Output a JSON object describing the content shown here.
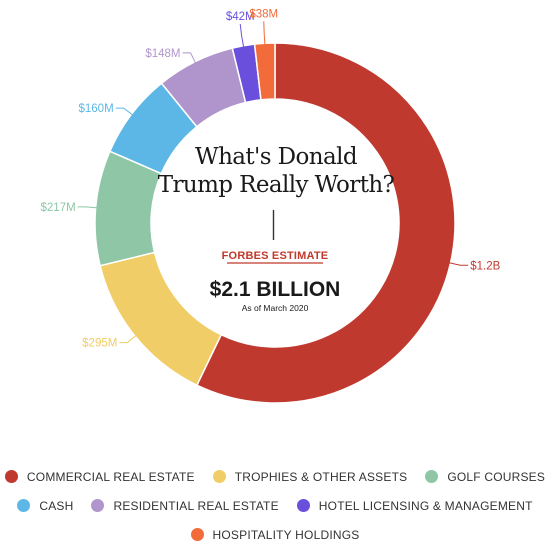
{
  "chart_data": {
    "type": "pie",
    "style": "donut",
    "title": "What's Donald Trump Really Worth?",
    "subtitle": "FORBES ESTIMATE",
    "total_label": "$2.1 BILLION",
    "as_of": "As of March 2020",
    "legend_position": "bottom",
    "slices": [
      {
        "name": "COMMERCIAL REAL ESTATE",
        "value": 1200,
        "label": "$1.2B",
        "color": "#c0392f"
      },
      {
        "name": "TROPHIES & OTHER ASSETS",
        "value": 295,
        "label": "$295M",
        "color": "#f0cd66"
      },
      {
        "name": "GOLF COURSES",
        "value": 217,
        "label": "$217M",
        "color": "#8ec6a6"
      },
      {
        "name": "CASH",
        "value": 160,
        "label": "$160M",
        "color": "#5db7e6"
      },
      {
        "name": "RESIDENTIAL REAL ESTATE",
        "value": 148,
        "label": "$148M",
        "color": "#b095cc"
      },
      {
        "name": "HOTEL LICENSING & MANAGEMENT",
        "value": 42,
        "label": "$42M",
        "color": "#6a4fdc"
      },
      {
        "name": "HOSPITALITY HOLDINGS",
        "value": 38,
        "label": "$38M",
        "color": "#f26b3a"
      }
    ]
  },
  "legend_rows": [
    [
      0,
      1,
      2
    ],
    [
      3,
      4,
      5
    ],
    [
      6
    ]
  ]
}
